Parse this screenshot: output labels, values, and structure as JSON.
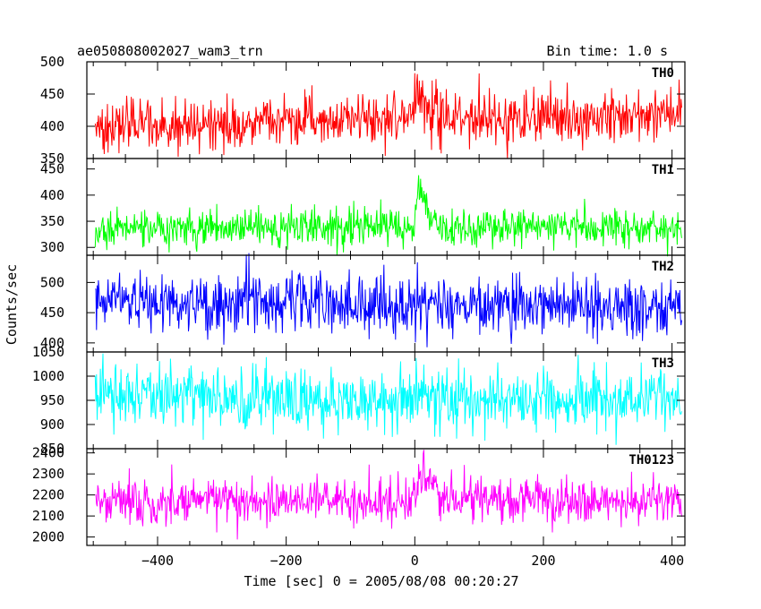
{
  "header": {
    "title": "ae050808002027_wam3_trn",
    "bin_time": "Bin time: 1.0 s"
  },
  "chart_data": {
    "type": "line",
    "xlabel": "Time [sec] 0 = 2005/08/08 00:20:27",
    "ylabel": "Counts/sec",
    "xlim": [
      -510,
      420
    ],
    "xticks": [
      -400,
      -200,
      0,
      200,
      400
    ],
    "x_start": -497,
    "x_end": 415,
    "bin": 1.0,
    "panels": [
      {
        "name": "TH0",
        "color": "#ff0000",
        "ylim": [
          350,
          500
        ],
        "yticks": [
          350,
          400,
          450,
          500
        ],
        "trend": [
          [
            -497,
            400
          ],
          [
            -300,
            403
          ],
          [
            -100,
            408
          ],
          [
            -5,
            412
          ],
          [
            0,
            432
          ],
          [
            10,
            455
          ],
          [
            25,
            430
          ],
          [
            45,
            415
          ],
          [
            90,
            412
          ],
          [
            200,
            415
          ],
          [
            415,
            420
          ]
        ],
        "noise": 20
      },
      {
        "name": "TH1",
        "color": "#00ff00",
        "ylim": [
          285,
          470
        ],
        "yticks": [
          300,
          350,
          400,
          450
        ],
        "trend": [
          [
            -497,
            335
          ],
          [
            -5,
            338
          ],
          [
            0,
            350
          ],
          [
            6,
            425
          ],
          [
            12,
            395
          ],
          [
            25,
            355
          ],
          [
            40,
            340
          ],
          [
            415,
            338
          ]
        ],
        "noise": 18
      },
      {
        "name": "TH2",
        "color": "#0000ff",
        "ylim": [
          385,
          545
        ],
        "yticks": [
          400,
          450,
          500
        ],
        "trend": [
          [
            -497,
            468
          ],
          [
            -300,
            465
          ],
          [
            -5,
            462
          ],
          [
            5,
            480
          ],
          [
            20,
            462
          ],
          [
            415,
            458
          ]
        ],
        "noise": 24
      },
      {
        "name": "TH3",
        "color": "#00ffff",
        "ylim": [
          850,
          1050
        ],
        "yticks": [
          850,
          900,
          950,
          1000,
          1050
        ],
        "trend": [
          [
            -497,
            962
          ],
          [
            -200,
            955
          ],
          [
            0,
            950
          ],
          [
            200,
            948
          ],
          [
            415,
            950
          ]
        ],
        "noise": 32
      },
      {
        "name": "TH0123",
        "color": "#ff00ff",
        "ylim": [
          1960,
          2420
        ],
        "yticks": [
          2000,
          2100,
          2200,
          2300,
          2400
        ],
        "trend": [
          [
            -497,
            2165
          ],
          [
            -5,
            2168
          ],
          [
            0,
            2230
          ],
          [
            8,
            2330
          ],
          [
            20,
            2260
          ],
          [
            40,
            2185
          ],
          [
            415,
            2165
          ]
        ],
        "noise": 52
      }
    ]
  }
}
